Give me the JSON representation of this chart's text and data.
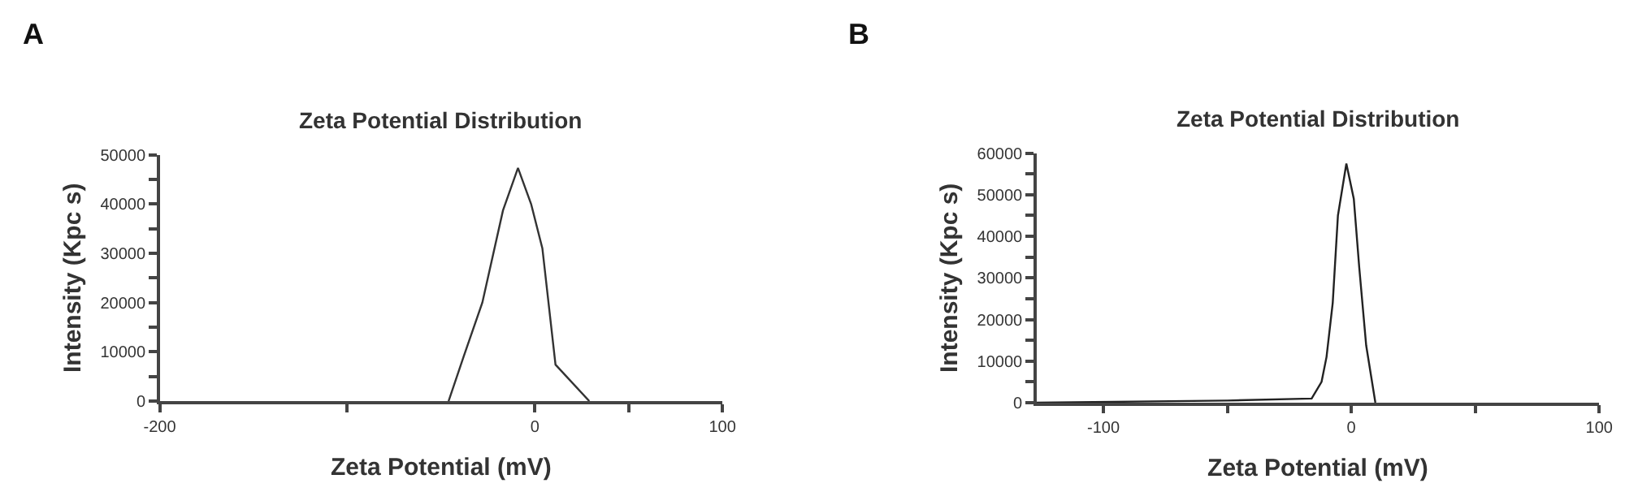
{
  "chart_data": [
    {
      "type": "line",
      "title": "Zeta Potential Distribution",
      "xlabel": "Zeta Potential (mV)",
      "ylabel": "Intensity (Kpc s)",
      "annotations": [
        "A"
      ],
      "x": [
        -46,
        -38,
        -28,
        -17,
        -9,
        -2,
        4,
        11,
        29
      ],
      "series": [
        {
          "color": "#333333",
          "values": [
            0,
            9000,
            20000,
            38700,
            47300,
            40000,
            31000,
            7400,
            0
          ]
        }
      ],
      "xlim": [
        -200,
        100
      ],
      "xticks": [
        -200,
        {
          "value": -100,
          "label": null
        },
        0,
        {
          "value": 50,
          "label": null
        },
        100
      ],
      "ylim": [
        0,
        50000
      ],
      "yticks": [
        0,
        {
          "value": 5000,
          "label": null
        },
        10000,
        {
          "value": 15000,
          "label": null
        },
        20000,
        {
          "value": 25000,
          "label": null
        },
        30000,
        {
          "value": 35000,
          "label": null
        },
        40000,
        {
          "value": 45000,
          "label": null
        },
        50000
      ],
      "marker": "none",
      "line_style": "solid"
    },
    {
      "type": "line",
      "title": "Zeta Potential Distribution",
      "xlabel": "Zeta Potential (mV)",
      "ylabel": "Intensity (Kpc s)",
      "annotations": [
        "B"
      ],
      "x": [
        -127,
        -50,
        -16,
        -12,
        -10,
        -7.5,
        -5.4,
        -2,
        1,
        3.2,
        6,
        9.7
      ],
      "series": [
        {
          "color": "#222222",
          "values": [
            0,
            500,
            1000,
            5000,
            11000,
            24000,
            45000,
            57500,
            49000,
            32500,
            13750,
            0
          ]
        }
      ],
      "xlim": [
        -127,
        100
      ],
      "xticks": [
        -100,
        {
          "value": -50,
          "label": null
        },
        0,
        {
          "value": 50,
          "label": null
        },
        100
      ],
      "ylim": [
        0,
        60000
      ],
      "yticks": [
        0,
        {
          "value": 5000,
          "label": null
        },
        10000,
        {
          "value": 15000,
          "label": null
        },
        20000,
        {
          "value": 25000,
          "label": null
        },
        30000,
        {
          "value": 35000,
          "label": null
        },
        40000,
        {
          "value": 45000,
          "label": null
        },
        50000,
        {
          "value": 55000,
          "label": null
        },
        60000
      ],
      "marker": "none",
      "line_style": "solid"
    }
  ]
}
